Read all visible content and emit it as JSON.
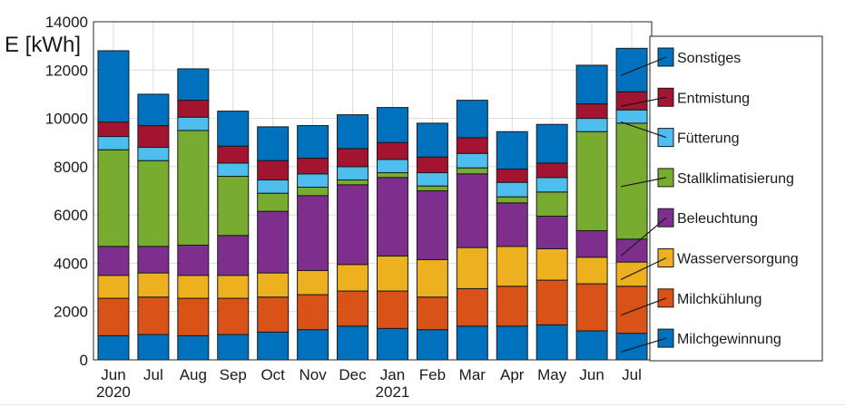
{
  "chart_data": {
    "type": "bar",
    "stacked": true,
    "ylabel": "E [kWh]",
    "ylim": [
      0,
      14000
    ],
    "yticks": [
      0,
      2000,
      4000,
      6000,
      8000,
      10000,
      12000,
      14000
    ],
    "grid": true,
    "legend_position": "right",
    "categories": [
      "Jun",
      "Jul",
      "Aug",
      "Sep",
      "Oct",
      "Nov",
      "Dec",
      "Jan",
      "Feb",
      "Mar",
      "Apr",
      "May",
      "Jun",
      "Jul"
    ],
    "year_labels": [
      {
        "category_index": 0,
        "text": "2020"
      },
      {
        "category_index": 7,
        "text": "2021"
      }
    ],
    "series": [
      {
        "name": "Milchgewinnung",
        "color": "#0072BD",
        "values": [
          1000,
          1050,
          1000,
          1050,
          1150,
          1250,
          1400,
          1300,
          1250,
          1400,
          1400,
          1450,
          1200,
          1100
        ]
      },
      {
        "name": "Milchkühlung",
        "color": "#D95319",
        "values": [
          1550,
          1550,
          1550,
          1500,
          1450,
          1450,
          1450,
          1550,
          1350,
          1550,
          1650,
          1850,
          1950,
          1950
        ]
      },
      {
        "name": "Wasserversorgung",
        "color": "#EDB120",
        "values": [
          950,
          1000,
          950,
          950,
          1000,
          1000,
          1100,
          1450,
          1550,
          1700,
          1650,
          1300,
          1100,
          1000
        ]
      },
      {
        "name": "Beleuchtung",
        "color": "#7E2F8E",
        "values": [
          1200,
          1100,
          1250,
          1650,
          2550,
          3100,
          3300,
          3250,
          2850,
          3050,
          1800,
          1350,
          1100,
          950
        ]
      },
      {
        "name": "Stallklimatisierung",
        "color": "#77AC30",
        "values": [
          4000,
          3550,
          4750,
          2450,
          750,
          350,
          200,
          200,
          200,
          250,
          250,
          1000,
          4100,
          4800
        ]
      },
      {
        "name": "Fütterung",
        "color": "#4DBEEE",
        "values": [
          550,
          550,
          550,
          550,
          550,
          550,
          550,
          550,
          550,
          600,
          600,
          600,
          550,
          550
        ]
      },
      {
        "name": "Entmistung",
        "color": "#A2142F",
        "values": [
          600,
          900,
          700,
          700,
          800,
          650,
          750,
          700,
          650,
          650,
          550,
          600,
          600,
          750
        ]
      },
      {
        "name": "Sonstiges",
        "color": "#0072BD",
        "values": [
          2950,
          1300,
          1300,
          1450,
          1400,
          1350,
          1400,
          1450,
          1400,
          1550,
          1550,
          1600,
          1600,
          1800
        ]
      }
    ]
  }
}
